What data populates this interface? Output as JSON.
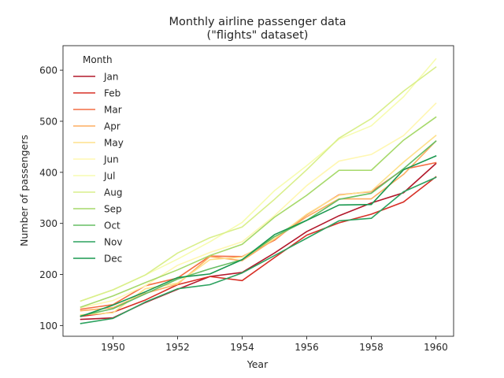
{
  "chart_data": {
    "type": "line",
    "title_line1": "Monthly airline passenger data",
    "title_line2": "(\"flights\" dataset)",
    "xlabel": "Year",
    "ylabel": "Number of passengers",
    "xlim": [
      1948.45,
      1960.55
    ],
    "ylim": [
      79.0,
      648.0
    ],
    "xticks": [
      1950,
      1952,
      1954,
      1956,
      1958,
      1960
    ],
    "yticks": [
      100,
      200,
      300,
      400,
      500,
      600
    ],
    "legend_title": "Month",
    "legend_position": "upper-left",
    "x": [
      1949,
      1950,
      1951,
      1952,
      1953,
      1954,
      1955,
      1956,
      1957,
      1958,
      1959,
      1960
    ],
    "series": [
      {
        "name": "Jan",
        "color": "#b2182b",
        "values": [
          112,
          115,
          145,
          171,
          196,
          204,
          242,
          284,
          315,
          340,
          360,
          417
        ]
      },
      {
        "name": "Feb",
        "color": "#d73027",
        "values": [
          118,
          126,
          150,
          180,
          196,
          188,
          233,
          277,
          301,
          318,
          342,
          391
        ]
      },
      {
        "name": "Mar",
        "color": "#f46d43",
        "values": [
          132,
          141,
          178,
          193,
          236,
          235,
          267,
          317,
          356,
          362,
          406,
          419
        ]
      },
      {
        "name": "Apr",
        "color": "#fdae61",
        "values": [
          129,
          135,
          163,
          181,
          235,
          227,
          269,
          313,
          348,
          348,
          396,
          461
        ]
      },
      {
        "name": "May",
        "color": "#fee08b",
        "values": [
          121,
          125,
          172,
          183,
          229,
          234,
          270,
          318,
          355,
          363,
          420,
          472
        ]
      },
      {
        "name": "Jun",
        "color": "#fff7b2",
        "values": [
          135,
          149,
          178,
          218,
          243,
          264,
          315,
          374,
          422,
          435,
          472,
          535
        ]
      },
      {
        "name": "Jul",
        "color": "#f7fcb0",
        "values": [
          148,
          170,
          199,
          230,
          264,
          302,
          364,
          413,
          465,
          491,
          548,
          622
        ]
      },
      {
        "name": "Aug",
        "color": "#d9ef8b",
        "values": [
          148,
          170,
          199,
          242,
          272,
          293,
          347,
          405,
          467,
          505,
          559,
          606
        ]
      },
      {
        "name": "Sep",
        "color": "#a6d96a",
        "values": [
          136,
          158,
          184,
          209,
          237,
          259,
          312,
          355,
          404,
          404,
          463,
          508
        ]
      },
      {
        "name": "Oct",
        "color": "#66bd63",
        "values": [
          119,
          133,
          162,
          191,
          211,
          229,
          274,
          306,
          347,
          359,
          407,
          461
        ]
      },
      {
        "name": "Nov",
        "color": "#2ca25f",
        "values": [
          104,
          114,
          146,
          172,
          180,
          203,
          237,
          271,
          305,
          310,
          362,
          390
        ]
      },
      {
        "name": "Dec",
        "color": "#1a9850",
        "values": [
          118,
          140,
          166,
          194,
          201,
          229,
          278,
          306,
          336,
          337,
          405,
          432
        ]
      }
    ]
  }
}
